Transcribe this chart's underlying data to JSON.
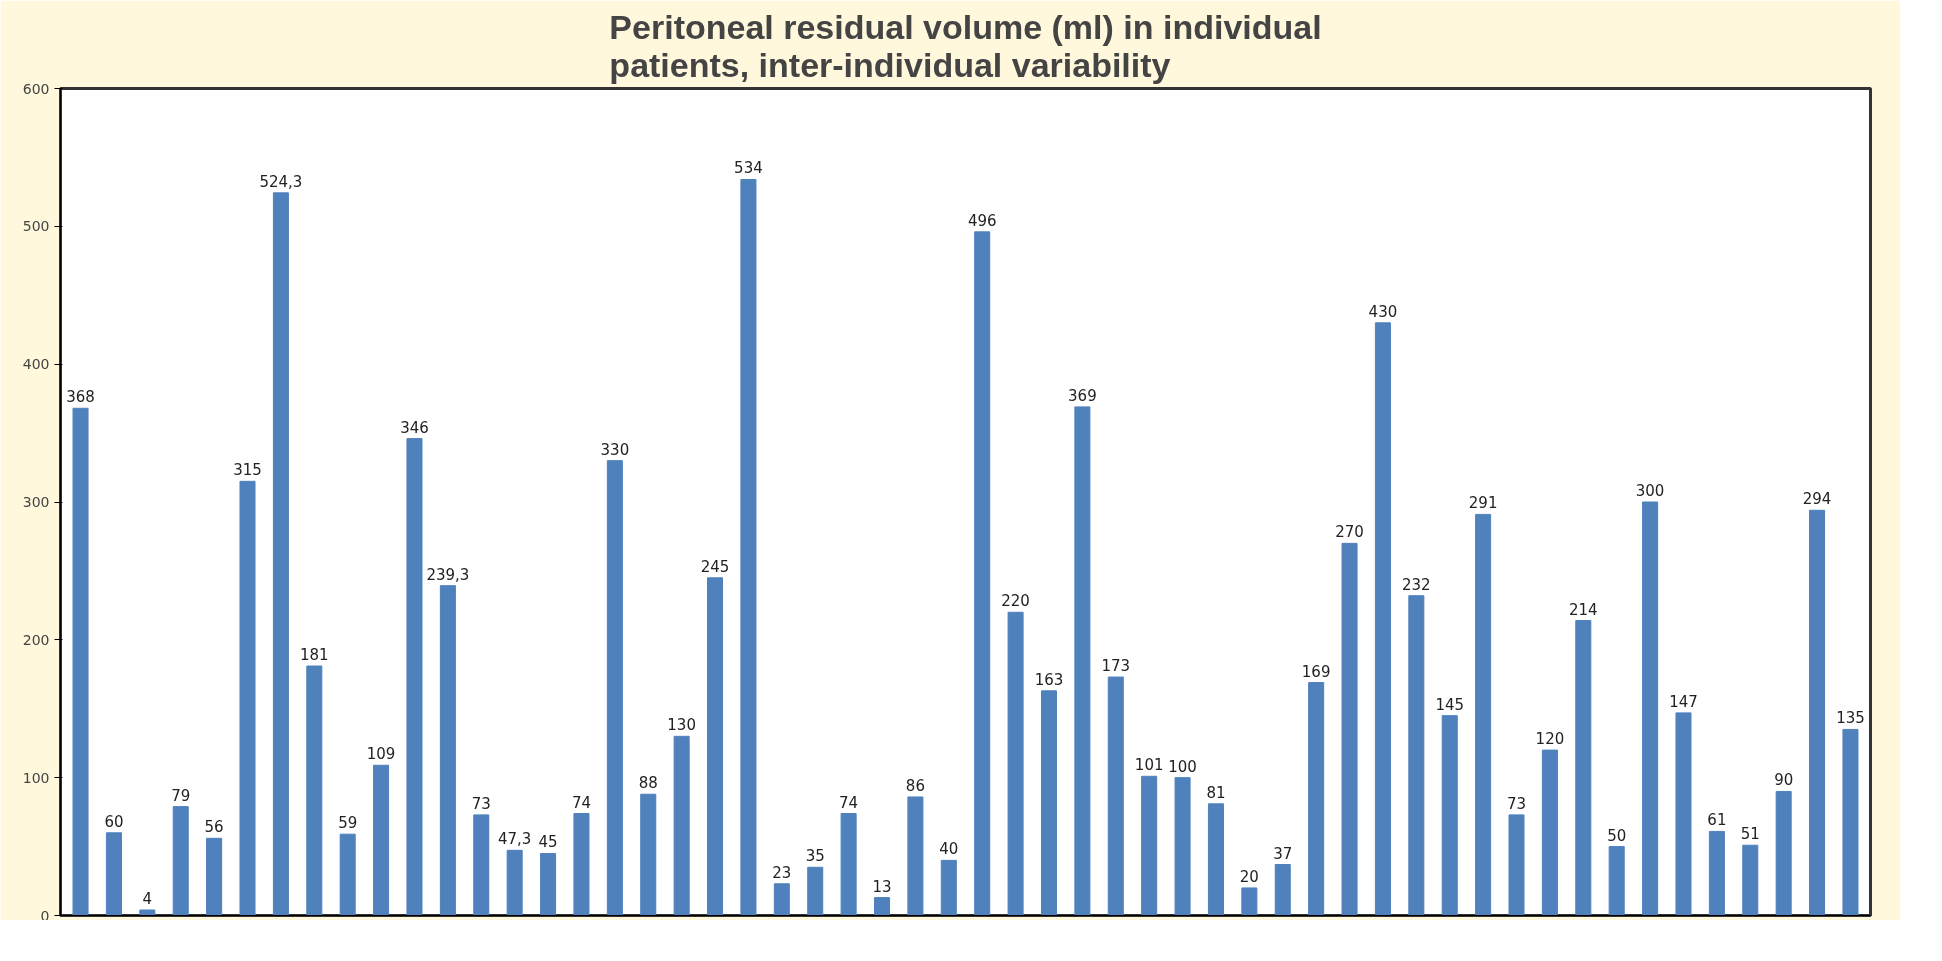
{
  "chart_data": {
    "type": "bar",
    "title": "Peritoneal residual volume (ml) in individual\npatients, inter-individual variability",
    "categories": [
      null,
      null,
      null,
      null,
      null,
      null,
      null,
      null,
      null,
      null,
      null,
      null,
      null,
      null,
      null,
      null,
      null,
      null,
      null,
      null,
      null,
      null,
      null,
      null,
      null,
      null,
      null,
      null,
      null,
      null,
      null,
      null,
      null,
      null,
      null,
      null,
      null,
      null,
      null,
      null,
      null,
      null,
      null,
      null,
      null,
      null,
      null,
      null,
      null,
      null,
      null,
      null,
      null,
      null
    ],
    "values": [
      368,
      60,
      4,
      79,
      56,
      315,
      524.3,
      181,
      59,
      109,
      346,
      239.3,
      73,
      47.3,
      45,
      74,
      330,
      88,
      130,
      245,
      534,
      23,
      35,
      74,
      13,
      86,
      40,
      496,
      220,
      163,
      369,
      173,
      101,
      100,
      81,
      20,
      37,
      169,
      270,
      430,
      232,
      145,
      291,
      73,
      120,
      214,
      50,
      300,
      147,
      61,
      51,
      90,
      294,
      135
    ],
    "value_labels": [
      "368",
      "60",
      "4",
      "79",
      "56",
      "315",
      "524,3",
      "181",
      "59",
      "109",
      "346",
      "239,3",
      "73",
      "47,3",
      "45",
      "74",
      "330",
      "88",
      "130",
      "245",
      "534",
      "23",
      "35",
      "74",
      "13",
      "86",
      "40",
      "496",
      "220",
      "163",
      "369",
      "173",
      "101",
      "100",
      "81",
      "20",
      "37",
      "169",
      "270",
      "430",
      "232",
      "145",
      "291",
      "73",
      "120",
      "214",
      "50",
      "300",
      "147",
      "61",
      "51",
      "90",
      "294",
      "135"
    ],
    "color": "#4f81bd",
    "ylim": [
      0,
      600
    ],
    "yticks": [
      0,
      100,
      200,
      300,
      400,
      500,
      600
    ],
    "grid": false
  }
}
